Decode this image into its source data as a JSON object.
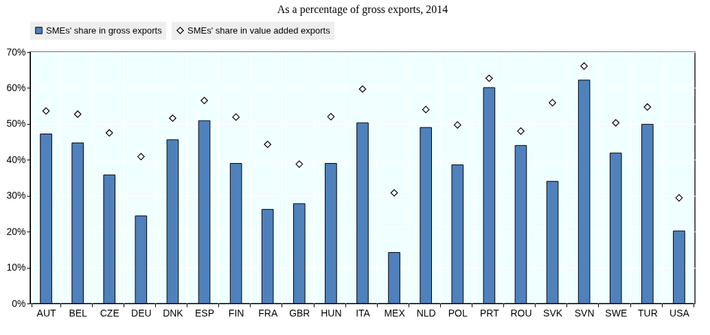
{
  "chart_data": {
    "type": "bar",
    "title": "As a percentage of gross exports, 2014",
    "categories": [
      "AUT",
      "BEL",
      "CZE",
      "DEU",
      "DNK",
      "ESP",
      "FIN",
      "FRA",
      "GBR",
      "HUN",
      "ITA",
      "MEX",
      "NLD",
      "POL",
      "PRT",
      "ROU",
      "SVK",
      "SVN",
      "SWE",
      "TUR",
      "USA"
    ],
    "series": [
      {
        "name": "SMEs' share in gross exports",
        "color": "#4f81bd",
        "values": [
          47.2,
          44.7,
          35.8,
          24.4,
          45.6,
          50.9,
          39.0,
          26.2,
          27.8,
          39.0,
          50.3,
          14.2,
          49.0,
          38.6,
          60.1,
          44.0,
          34.0,
          62.2,
          41.9,
          49.9,
          20.2
        ]
      },
      {
        "name": "SMEs' share in value added exports",
        "type": "scatter",
        "marker": "diamond",
        "color": "#000000",
        "values": [
          53.6,
          52.7,
          47.5,
          40.9,
          51.6,
          56.5,
          51.9,
          44.3,
          38.8,
          52.0,
          59.7,
          30.8,
          54.0,
          49.7,
          62.7,
          48.0,
          55.9,
          66.1,
          50.3,
          54.7,
          29.4
        ]
      }
    ],
    "ylim": [
      0,
      70
    ],
    "yticks": [
      {
        "value": 0,
        "label": "0%"
      },
      {
        "value": 10,
        "label": "10%"
      },
      {
        "value": 20,
        "label": "20%"
      },
      {
        "value": 30,
        "label": "30%"
      },
      {
        "value": 40,
        "label": "40%"
      },
      {
        "value": 50,
        "label": "50%"
      },
      {
        "value": 60,
        "label": "60%"
      },
      {
        "value": 70,
        "label": "70%"
      }
    ],
    "grid": true,
    "legend": "top"
  }
}
